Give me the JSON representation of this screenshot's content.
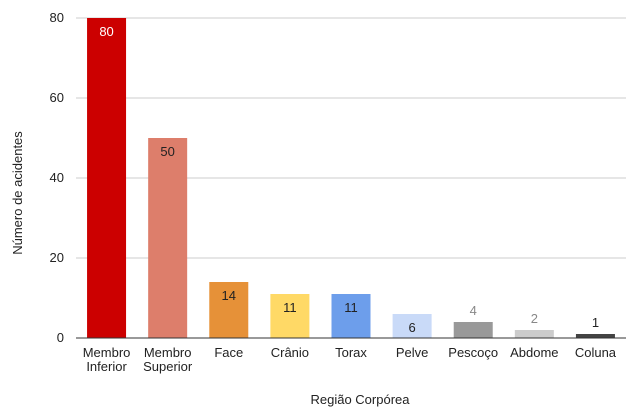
{
  "chart_data": {
    "type": "bar",
    "title": "",
    "xlabel": "Região Corpórea",
    "ylabel": "Número de acidentes",
    "ylim": [
      0,
      80
    ],
    "yticks": [
      "0",
      "20",
      "40",
      "60",
      "80"
    ],
    "grid": true,
    "categories": [
      [
        "Membro",
        "Inferior"
      ],
      [
        "Membro",
        "Superior"
      ],
      [
        "Face"
      ],
      [
        "Crânio"
      ],
      [
        "Torax"
      ],
      [
        "Pelve"
      ],
      [
        "Pescoço"
      ],
      [
        "Abdome"
      ],
      [
        "Coluna"
      ]
    ],
    "values": [
      80,
      50,
      14,
      11,
      11,
      6,
      4,
      2,
      1
    ],
    "colors": [
      "#cc0000",
      "#dd7e6b",
      "#e69138",
      "#ffd966",
      "#6d9eeb",
      "#c9daf8",
      "#999999",
      "#cccccc",
      "#434343"
    ],
    "label_colors": [
      "#ffffff",
      "#222222",
      "#222222",
      "#222222",
      "#222222",
      "#222222",
      "#888888",
      "#888888",
      "#222222"
    ]
  }
}
